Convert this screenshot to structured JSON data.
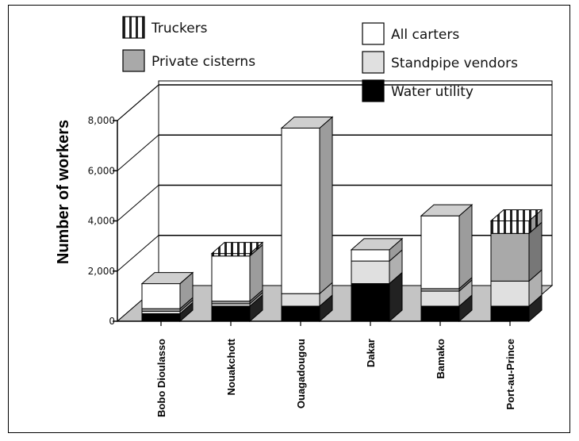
{
  "chart_data": {
    "type": "bar",
    "stacked": true,
    "three_d": true,
    "ylabel": "Number of workers",
    "xlabel": "",
    "ylim": [
      0,
      8000
    ],
    "yticks": [
      "0",
      "2,000",
      "4,000",
      "6,000",
      "8,000"
    ],
    "grid": true,
    "legend_position": "top",
    "categories": [
      "Bobo Dioulasso",
      "Nouakchott",
      "Ouagadougou",
      "Dakar",
      "Bamako",
      "Port-au-Prince"
    ],
    "series": [
      {
        "name": "Water utility",
        "values": [
          300,
          600,
          600,
          1500,
          600,
          600
        ],
        "color": "#000000"
      },
      {
        "name": "Standpipe vendors",
        "values": [
          100,
          100,
          500,
          900,
          600,
          1000
        ],
        "color": "#e0e0e0"
      },
      {
        "name": "Private cisterns",
        "values": [
          100,
          100,
          0,
          0,
          100,
          1900
        ],
        "color": "#a9a9a9"
      },
      {
        "name": "All carters",
        "values": [
          1000,
          1800,
          6600,
          450,
          2900,
          0
        ],
        "color": "#ffffff"
      },
      {
        "name": "Truckers",
        "values": [
          0,
          100,
          0,
          0,
          0,
          500
        ],
        "color": "#ffffff"
      }
    ],
    "legend_order": [
      "Truckers",
      "All carters",
      "Private cisterns",
      "Standpipe vendors",
      "Water utility"
    ]
  }
}
